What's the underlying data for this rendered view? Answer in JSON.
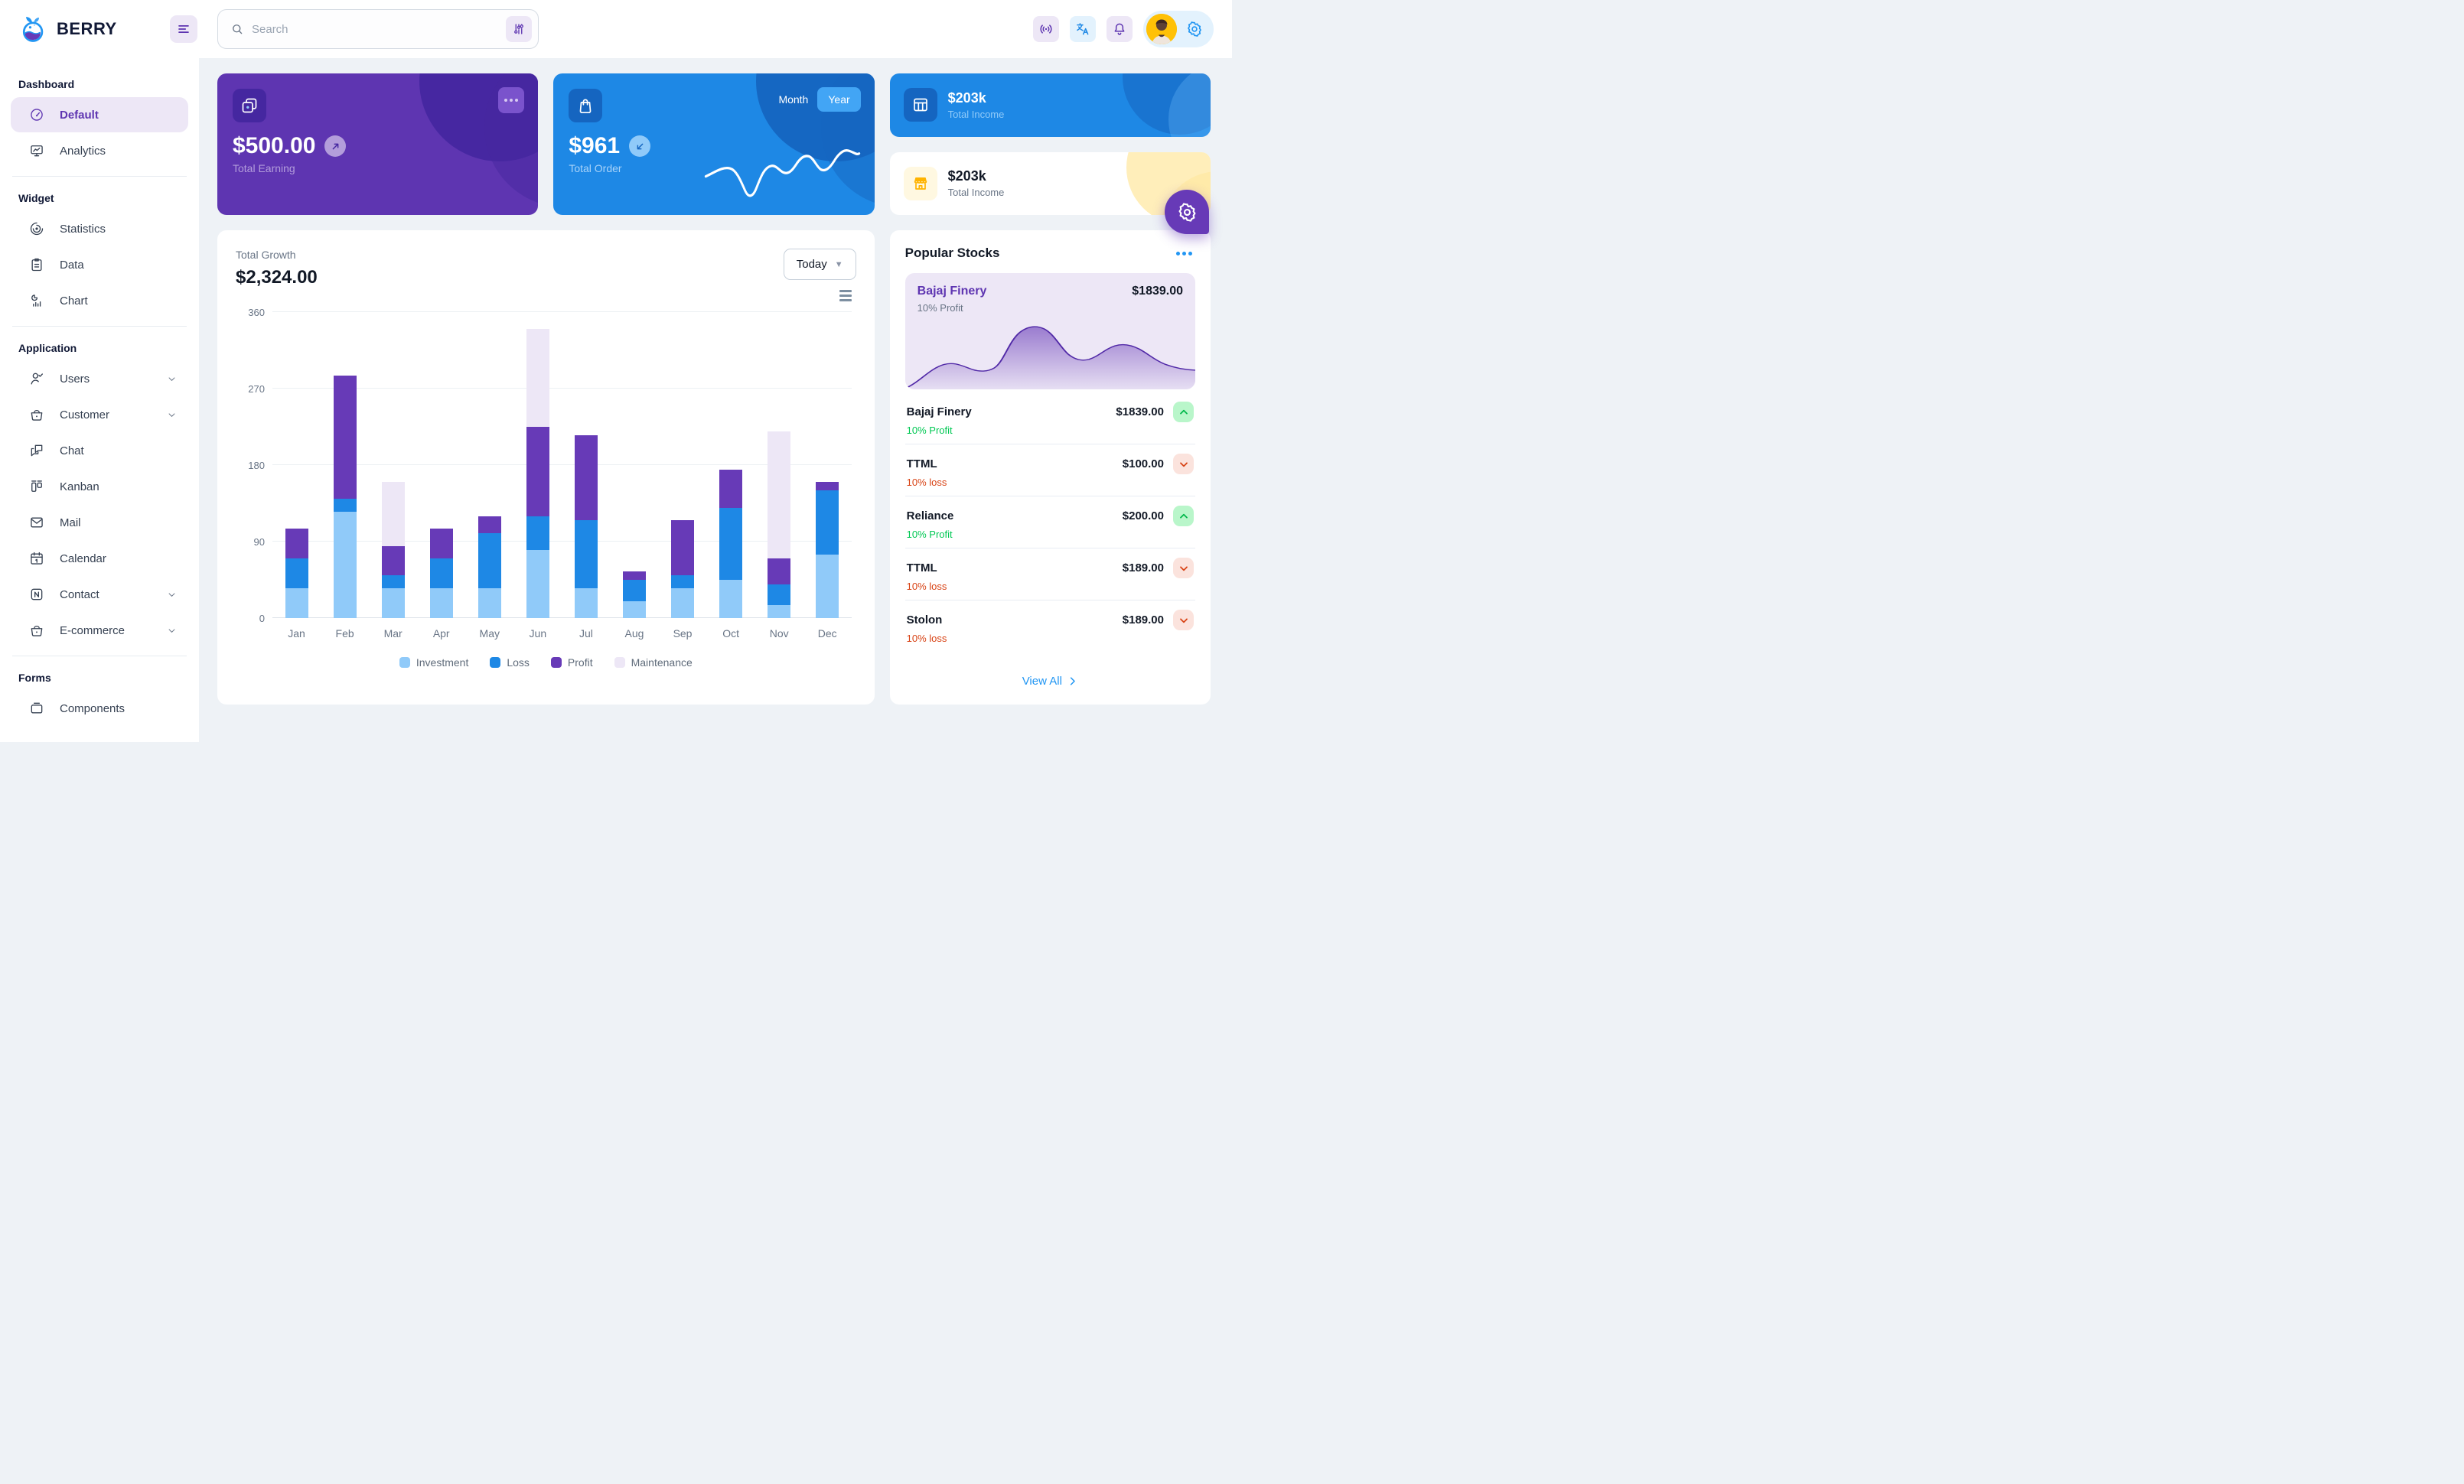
{
  "brand": {
    "name": "BERRY"
  },
  "header": {
    "search_placeholder": "Search",
    "icons": [
      "menu-icon",
      "search-icon",
      "tune-icon",
      "broadcast-icon",
      "translate-icon",
      "bell-icon",
      "avatar",
      "gear-icon"
    ]
  },
  "sidebar": {
    "sections": [
      {
        "title": "Dashboard",
        "items": [
          {
            "label": "Default",
            "icon": "gauge",
            "active": true
          },
          {
            "label": "Analytics",
            "icon": "monitor"
          }
        ]
      },
      {
        "title": "Widget",
        "items": [
          {
            "label": "Statistics",
            "icon": "statistics"
          },
          {
            "label": "Data",
            "icon": "clipboard"
          },
          {
            "label": "Chart",
            "icon": "chart"
          }
        ]
      },
      {
        "title": "Application",
        "items": [
          {
            "label": "Users",
            "icon": "user-check",
            "chevron": true
          },
          {
            "label": "Customer",
            "icon": "basket",
            "chevron": true
          },
          {
            "label": "Chat",
            "icon": "chat"
          },
          {
            "label": "Kanban",
            "icon": "kanban"
          },
          {
            "label": "Mail",
            "icon": "mail"
          },
          {
            "label": "Calendar",
            "icon": "calendar"
          },
          {
            "label": "Contact",
            "icon": "notebook",
            "chevron": true
          },
          {
            "label": "E-commerce",
            "icon": "basket",
            "chevron": true
          }
        ]
      },
      {
        "title": "Forms",
        "items": [
          {
            "label": "Components",
            "icon": "components"
          }
        ]
      }
    ]
  },
  "cards": {
    "earning": {
      "value": "$500.00",
      "label": "Total Earning"
    },
    "order": {
      "value": "$961",
      "label": "Total Order",
      "period_month": "Month",
      "period_year": "Year",
      "selected_period": "Year"
    },
    "income_dark": {
      "value": "$203k",
      "label": "Total Income"
    },
    "income_light": {
      "value": "$203k",
      "label": "Total Income"
    }
  },
  "growth": {
    "title": "Total Growth",
    "value": "$2,324.00",
    "range_label": "Today"
  },
  "stocks": {
    "title": "Popular Stocks",
    "featured": {
      "name": "Bajaj Finery",
      "price": "$1839.00",
      "change": "10% Profit"
    },
    "items": [
      {
        "name": "Bajaj Finery",
        "price": "$1839.00",
        "change": "10% Profit",
        "direction": "up"
      },
      {
        "name": "TTML",
        "price": "$100.00",
        "change": "10% loss",
        "direction": "down"
      },
      {
        "name": "Reliance",
        "price": "$200.00",
        "change": "10% Profit",
        "direction": "up"
      },
      {
        "name": "TTML",
        "price": "$189.00",
        "change": "10% loss",
        "direction": "down"
      },
      {
        "name": "Stolon",
        "price": "$189.00",
        "change": "10% loss",
        "direction": "down"
      }
    ],
    "view_all": "View All"
  },
  "chart_data": [
    {
      "name": "total-growth-bar-chart",
      "type": "bar",
      "stacked": true,
      "title": "Total Growth",
      "total_label": "$2,324.00",
      "categories": [
        "Jan",
        "Feb",
        "Mar",
        "Apr",
        "May",
        "Jun",
        "Jul",
        "Aug",
        "Sep",
        "Oct",
        "Nov",
        "Dec"
      ],
      "series": [
        {
          "name": "Investment",
          "color": "#90caf9",
          "values": [
            35,
            125,
            35,
            35,
            35,
            80,
            35,
            20,
            35,
            45,
            15,
            75
          ]
        },
        {
          "name": "Loss",
          "color": "#1e88e5",
          "values": [
            35,
            15,
            15,
            35,
            65,
            40,
            80,
            25,
            15,
            85,
            25,
            75
          ]
        },
        {
          "name": "Profit",
          "color": "#673ab7",
          "values": [
            35,
            145,
            35,
            35,
            20,
            105,
            100,
            10,
            65,
            45,
            30,
            10
          ]
        },
        {
          "name": "Maintenance",
          "color": "#ede7f6",
          "values": [
            0,
            0,
            75,
            0,
            0,
            115,
            0,
            0,
            0,
            0,
            150,
            0
          ]
        }
      ],
      "xlabel": "",
      "ylabel": "",
      "ylim": [
        0,
        360
      ],
      "yticks": [
        0,
        90,
        180,
        270,
        360
      ],
      "grid": true,
      "legend_position": "bottom"
    },
    {
      "name": "total-order-sparkline",
      "type": "line",
      "series": [
        {
          "name": "orders",
          "values": [
            45,
            52,
            40,
            12,
            44,
            38,
            58,
            50,
            68,
            58,
            42,
            72
          ]
        }
      ],
      "note": "white decorative sparkline, values estimated"
    },
    {
      "name": "bajaj-finery-sparkline",
      "type": "area",
      "series": [
        {
          "name": "price",
          "values": [
            5,
            38,
            30,
            26,
            82,
            96,
            66,
            52,
            58,
            72,
            62,
            44
          ]
        }
      ],
      "note": "purple decorative area chart, values estimated"
    }
  ],
  "colors": {
    "secondary_purple": "#5e35b1",
    "secondary_dark": "#4527a0",
    "primary_blue": "#1e88e5",
    "primary_dark": "#1565c0",
    "accent_blue": "#2196f3",
    "success_green": "#00c853",
    "success_light": "#b9f6ca",
    "error_orange": "#d84315",
    "error_light": "#fbe9e7",
    "warning_amber": "#ffb300",
    "warning_light": "#fff8e1",
    "page_bg": "#eef2f6"
  }
}
